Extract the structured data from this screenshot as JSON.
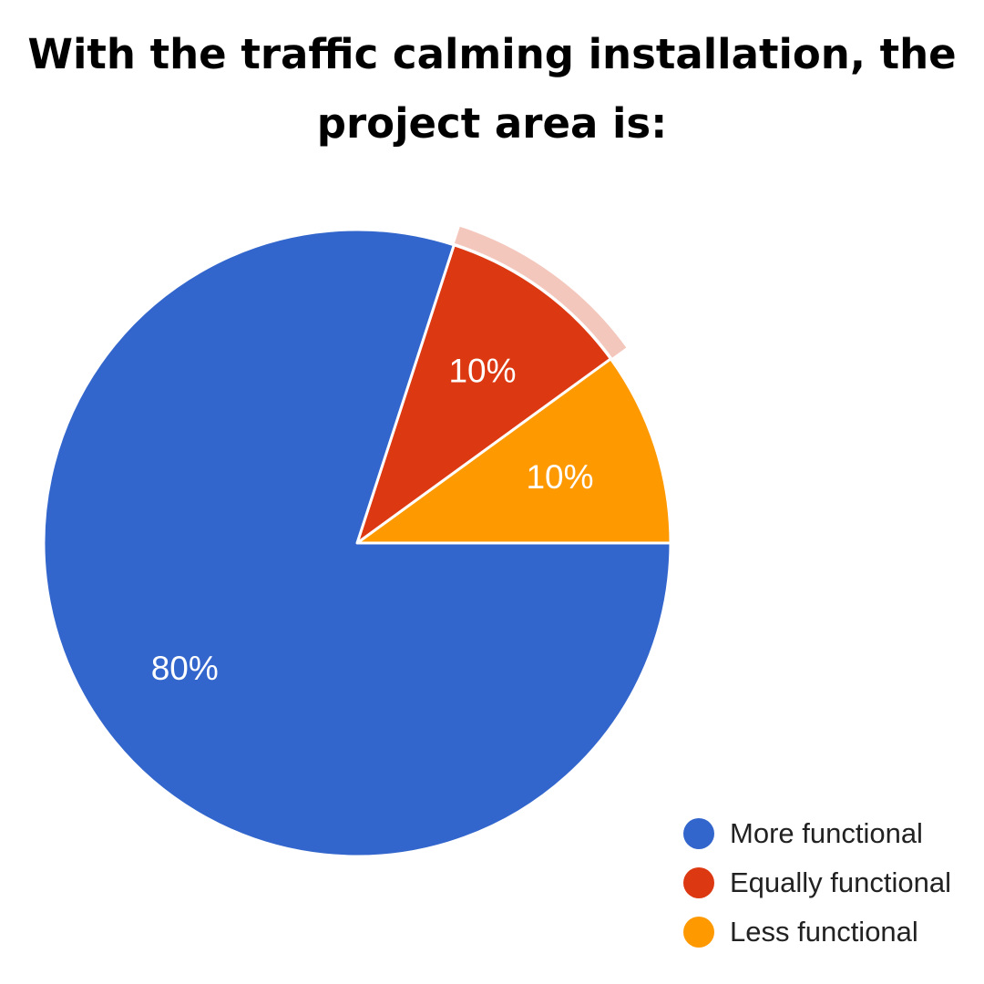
{
  "title_lines": [
    "With the traffic calming installation, the",
    "project area is:"
  ],
  "chart_data": {
    "type": "pie",
    "title": "With the traffic calming installation, the project area is:",
    "categories": [
      "More functional",
      "Equally functional",
      "Less functional"
    ],
    "values": [
      80,
      10,
      10
    ],
    "labels": [
      "80%",
      "10%",
      "10%"
    ],
    "colors": [
      "#3366cc",
      "#dc3912",
      "#ff9900"
    ],
    "highlight_color": "#f4c7bd",
    "highlighted_slice": "Equally functional",
    "legend_position": "bottom-right"
  }
}
